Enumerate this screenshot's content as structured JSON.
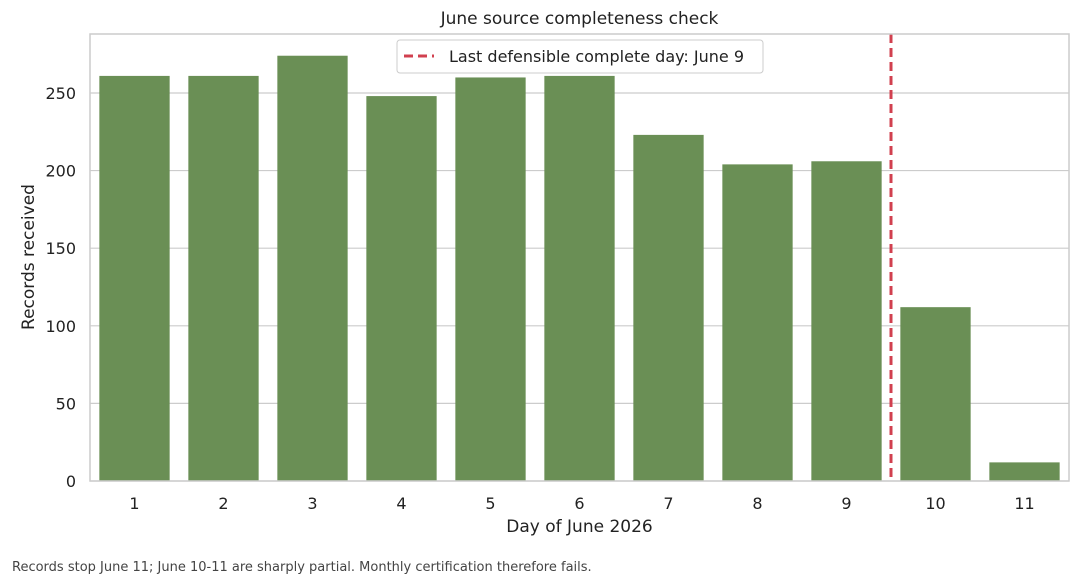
{
  "chart_data": {
    "type": "bar",
    "title": "June source completeness check",
    "xlabel": "Day of June 2026",
    "ylabel": "Records received",
    "categories": [
      "1",
      "2",
      "3",
      "4",
      "5",
      "6",
      "7",
      "8",
      "9",
      "10",
      "11"
    ],
    "values": [
      261,
      261,
      274,
      248,
      260,
      261,
      223,
      204,
      206,
      112,
      12
    ],
    "ylim": [
      0,
      288
    ],
    "yticks": [
      0,
      50,
      100,
      150,
      200,
      250
    ],
    "grid": true,
    "bar_color": "#6a8f55",
    "reference_line": {
      "label": "Last defensible complete day: June 9",
      "after_category": "9",
      "color": "#d1404f",
      "style": "dashed"
    },
    "legend_position": "top-center"
  },
  "caption": "Records stop June 11; June 10-11 are sharply partial. Monthly certification therefore fails."
}
